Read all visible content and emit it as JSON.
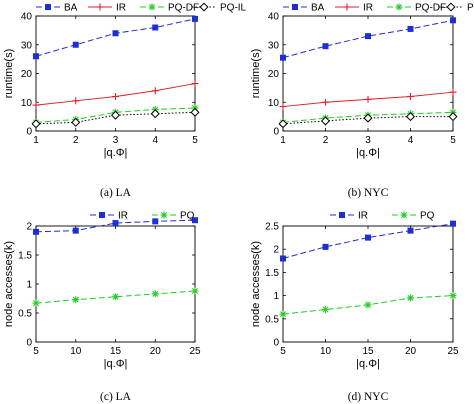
{
  "chart_data": [
    {
      "type": "line",
      "caption": "(a)  LA",
      "x": [
        1,
        2,
        3,
        4,
        5
      ],
      "xlabel": "|q.Φ|",
      "ylabel": "runtime(s)",
      "xlim": [
        1,
        5
      ],
      "ylim": [
        0,
        40
      ],
      "yticks": [
        0,
        10,
        20,
        30,
        40
      ],
      "legend_position": "top",
      "series": [
        {
          "name": "BA",
          "values": [
            26,
            30,
            34,
            36,
            39
          ],
          "color": "#1f2fd6",
          "dash": "6,3",
          "marker": "square"
        },
        {
          "name": "IR",
          "values": [
            9,
            10.5,
            12,
            14,
            16.5
          ],
          "color": "#e0202a",
          "dash": "",
          "marker": "plus"
        },
        {
          "name": "PQ-DF",
          "values": [
            3,
            4,
            6.5,
            7.5,
            8
          ],
          "color": "#22cc22",
          "dash": "6,3",
          "marker": "asterisk"
        },
        {
          "name": "PQ-IL",
          "values": [
            2.5,
            3,
            5.5,
            6,
            6.5
          ],
          "color": "#000000",
          "dash": "1.5,2",
          "marker": "diamond"
        }
      ]
    },
    {
      "type": "line",
      "caption": "(b)  NYC",
      "x": [
        1,
        2,
        3,
        4,
        5
      ],
      "xlabel": "|q.Φ|",
      "ylabel": "runtime(s)",
      "xlim": [
        1,
        5
      ],
      "ylim": [
        0,
        40
      ],
      "yticks": [
        0,
        10,
        20,
        30,
        40
      ],
      "legend_position": "top",
      "series": [
        {
          "name": "BA",
          "values": [
            25.5,
            29.5,
            33,
            35.5,
            38.5
          ],
          "color": "#1f2fd6",
          "dash": "6,3",
          "marker": "square"
        },
        {
          "name": "IR",
          "values": [
            8.5,
            10,
            11,
            12,
            13.5
          ],
          "color": "#e0202a",
          "dash": "",
          "marker": "plus"
        },
        {
          "name": "PQ-DF",
          "values": [
            3,
            4.5,
            5.5,
            6,
            6.5
          ],
          "color": "#22cc22",
          "dash": "6,3",
          "marker": "asterisk"
        },
        {
          "name": "PQ-IL",
          "values": [
            2.5,
            3.5,
            4.5,
            5,
            5
          ],
          "color": "#000000",
          "dash": "1.5,2",
          "marker": "diamond"
        }
      ]
    },
    {
      "type": "line",
      "caption": "(c)  LA",
      "x": [
        5,
        10,
        15,
        20,
        25
      ],
      "xlabel": "|q.Φ|",
      "ylabel": "node accesses(k)",
      "xlim": [
        5,
        25
      ],
      "ylim": [
        0,
        2
      ],
      "yticks": [
        0,
        0.5,
        1,
        1.5,
        2
      ],
      "legend_position": "top",
      "series": [
        {
          "name": "IR",
          "values": [
            1.9,
            1.92,
            2.05,
            2.08,
            2.1
          ],
          "color": "#1f2fd6",
          "dash": "6,3",
          "marker": "square"
        },
        {
          "name": "PQ",
          "values": [
            0.67,
            0.73,
            0.78,
            0.83,
            0.88
          ],
          "color": "#22cc22",
          "dash": "6,3",
          "marker": "asterisk"
        }
      ]
    },
    {
      "type": "line",
      "caption": "(d)  NYC",
      "x": [
        5,
        10,
        15,
        20,
        25
      ],
      "xlabel": "|q.Φ|",
      "ylabel": "node accesses(k)",
      "xlim": [
        5,
        25
      ],
      "ylim": [
        0,
        2.5
      ],
      "yticks": [
        0,
        0.5,
        1,
        1.5,
        2,
        2.5
      ],
      "legend_position": "top",
      "series": [
        {
          "name": "IR",
          "values": [
            1.8,
            2.05,
            2.25,
            2.4,
            2.55
          ],
          "color": "#1f2fd6",
          "dash": "6,3",
          "marker": "square"
        },
        {
          "name": "PQ",
          "values": [
            0.6,
            0.7,
            0.8,
            0.95,
            1.0
          ],
          "color": "#22cc22",
          "dash": "6,3",
          "marker": "asterisk"
        }
      ]
    }
  ]
}
